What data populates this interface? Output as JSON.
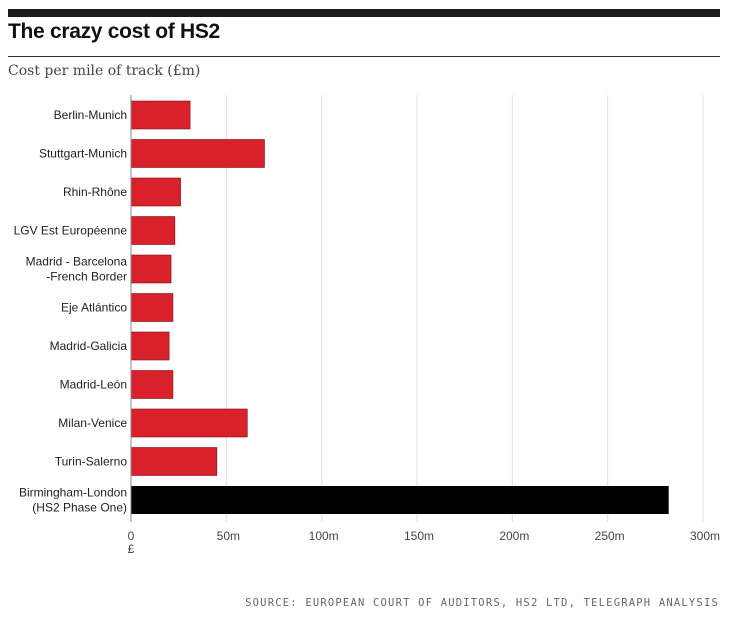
{
  "header": {
    "title": "The crazy cost of HS2",
    "subtitle": "Cost per mile of track (£m)",
    "source": "SOURCE: EUROPEAN COURT OF AUDITORS, HS2 LTD, TELEGRAPH ANALYSIS"
  },
  "colors": {
    "bar_default": "#d9212c",
    "bar_highlight": "#000000",
    "grid": "#e2e2e2"
  },
  "chart_data": {
    "type": "bar",
    "orientation": "horizontal",
    "categories": [
      [
        "Berlin-Munich"
      ],
      [
        "Stuttgart-Munich"
      ],
      [
        "Rhin-Rhône"
      ],
      [
        "LGV Est Européenne"
      ],
      [
        "Madrid - Barcelona",
        "-French Border"
      ],
      [
        "Eje Atlántico"
      ],
      [
        "Madrid-Galicia"
      ],
      [
        "Madrid-León"
      ],
      [
        "Milan-Venice"
      ],
      [
        "Turin-Salerno"
      ],
      [
        "Birmingham-London",
        "(HS2 Phase One)"
      ]
    ],
    "values": [
      31,
      70,
      26,
      23,
      21,
      22,
      20,
      22,
      61,
      45,
      282
    ],
    "highlight_index": 10,
    "xlim": [
      0,
      300
    ],
    "xticks": [
      0,
      50,
      100,
      150,
      200,
      250,
      300
    ],
    "xtick_labels": [
      "0",
      "50m",
      "100m",
      "150m",
      "200m",
      "250m",
      "300m"
    ],
    "currency_label": "£",
    "grid": "vertical",
    "legend": "none"
  }
}
